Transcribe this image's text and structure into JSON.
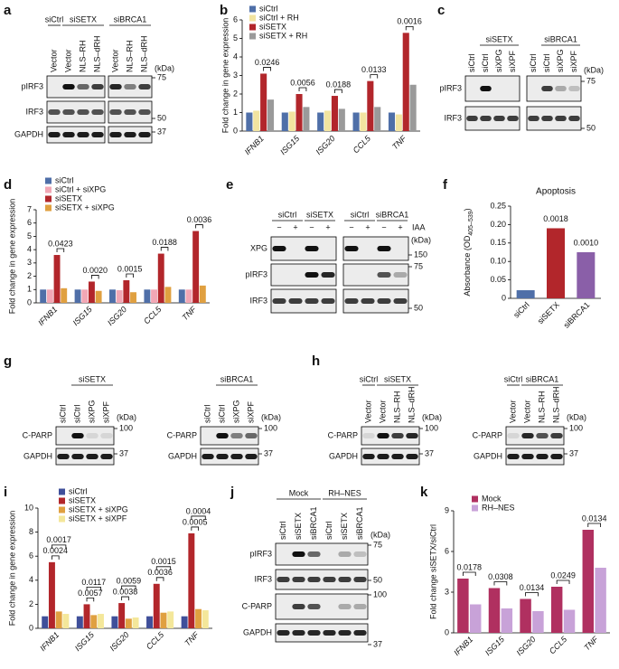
{
  "blots": [
    {
      "panel": "a",
      "boxes": [
        {
          "groups": [
            {
              "label": "siCtrl",
              "lanes": [
                "Vector"
              ]
            },
            {
              "label": "siSETX",
              "lanes": [
                "Vector",
                "NLS–RH",
                "NLS–dRH"
              ]
            }
          ]
        },
        {
          "groups": [
            {
              "label": "siBRCA1",
              "lanes": [
                "Vector",
                "NLS–RH",
                "NLS–dRH"
              ]
            }
          ]
        }
      ],
      "rows": [
        "pIRF3",
        "IRF3",
        "GAPDH"
      ],
      "kda": "(kDa)",
      "markers": [
        "75",
        "50",
        "37"
      ]
    },
    {
      "panel": "c",
      "boxes": [
        {
          "groups": [
            {
              "lanes": [
                "siCtrl"
              ]
            },
            {
              "label": "siSETX",
              "lanes": [
                "siCtrl",
                "siXPG",
                "siXPF"
              ]
            }
          ]
        },
        {
          "groups": [
            {
              "lanes": [
                "siCtrl"
              ]
            },
            {
              "label": "siBRCA1",
              "lanes": [
                "siCtrl",
                "siXPG",
                "siXPF"
              ]
            }
          ]
        }
      ],
      "rows": [
        "pIRF3",
        "IRF3"
      ],
      "kda": "(kDa)",
      "markers": [
        "75",
        "50"
      ]
    },
    {
      "panel": "e",
      "boxes": [
        {
          "groups": [
            {
              "label": "siCtrl",
              "lanes": [
                "−",
                "+"
              ]
            },
            {
              "label": "siSETX",
              "lanes": [
                "−",
                "+"
              ]
            }
          ]
        },
        {
          "groups": [
            {
              "label": "siCtrl",
              "lanes": [
                "−",
                "+"
              ]
            },
            {
              "label": "siBRCA1",
              "lanes": [
                "−",
                "+"
              ]
            }
          ]
        }
      ],
      "treatment": "IAA",
      "rows": [
        "XPG",
        "pIRF3",
        "IRF3"
      ],
      "kda": "(kDa)",
      "markers": [
        "150",
        "75",
        "50"
      ]
    },
    {
      "panel": "g",
      "boxes": [
        {
          "groups": [
            {
              "lanes": [
                "siCtrl"
              ]
            },
            {
              "label": "siSETX",
              "lanes": [
                "siCtrl",
                "siXPG",
                "siXPF"
              ]
            }
          ]
        }
      ],
      "rows": [
        "C-PARP",
        "GAPDH"
      ],
      "kda": "(kDa)",
      "markers": [
        "100",
        "37"
      ]
    },
    {
      "boxes": [
        {
          "groups": [
            {
              "lanes": [
                "siCtrl"
              ]
            },
            {
              "label": "siBRCA1",
              "lanes": [
                "siCtrl",
                "siXPG",
                "siXPF"
              ]
            }
          ]
        }
      ],
      "rows": [
        "C-PARP",
        "GAPDH"
      ],
      "kda": "(kDa)",
      "markers": [
        "100",
        "37"
      ]
    },
    {
      "panel": "h",
      "boxes": [
        {
          "groups": [
            {
              "label": "siCtrl",
              "lanes": [
                "Vector"
              ]
            },
            {
              "label": "siSETX",
              "lanes": [
                "Vector",
                "NLS–RH",
                "NLS–dRH"
              ]
            }
          ]
        }
      ],
      "rows": [
        "C-PARP",
        "GAPDH"
      ],
      "kda": "(kDa)",
      "markers": [
        "100",
        "37"
      ]
    },
    {
      "boxes": [
        {
          "groups": [
            {
              "label": "siCtrl",
              "lanes": [
                "Vector"
              ]
            },
            {
              "label": "siBRCA1",
              "lanes": [
                "Vector",
                "NLS–RH",
                "NLS–dRH"
              ]
            }
          ]
        }
      ],
      "rows": [
        "C-PARP",
        "GAPDH"
      ],
      "kda": "(kDa)",
      "markers": [
        "100",
        "37"
      ]
    },
    {
      "panel": "j",
      "boxes": [
        {
          "groups": [
            {
              "label": "Mock",
              "lanes": [
                "siCtrl",
                "siSETX",
                "siBRCA1"
              ]
            },
            {
              "label": "RH–NES",
              "lanes": [
                "siCtrl",
                "siSETX",
                "siBRCA1"
              ]
            }
          ]
        }
      ],
      "rows": [
        "pIRF3",
        "IRF3",
        "C-PARP",
        "GAPDH"
      ],
      "kda": "(kDa)",
      "markers": [
        "75",
        "50",
        "100",
        "37"
      ]
    }
  ],
  "chart_data": [
    {
      "panel": "b",
      "type": "bar",
      "ylabel": "Fold change in gene expression",
      "categories": [
        "IFNB1",
        "ISG15",
        "ISG20",
        "CCL5",
        "TNF"
      ],
      "series": [
        {
          "name": "siCtrl",
          "color": "#4f6fa8",
          "values": [
            1,
            1,
            1,
            1,
            1
          ]
        },
        {
          "name": "siCtrl + RH",
          "color": "#f2e4a0",
          "values": [
            1.1,
            1.05,
            1.1,
            1.0,
            0.9
          ]
        },
        {
          "name": "siSETX",
          "color": "#b2262b",
          "values": [
            3.1,
            2.0,
            1.9,
            2.7,
            5.3
          ]
        },
        {
          "name": "siSETX + RH",
          "color": "#9a9a9a",
          "values": [
            1.7,
            1.3,
            1.2,
            1.3,
            2.5
          ]
        }
      ],
      "ylim": [
        0,
        6
      ],
      "yticks": [
        0,
        1,
        2,
        3,
        4,
        5,
        6
      ],
      "pvalues": [
        "0.0246",
        "0.0056",
        "0.0188",
        "0.0133",
        "0.0016"
      ]
    },
    {
      "panel": "d",
      "type": "bar",
      "ylabel": "Fold change in gene expression",
      "categories": [
        "IFNB1",
        "ISG15",
        "ISG20",
        "CCL5",
        "TNF"
      ],
      "series": [
        {
          "name": "siCtrl",
          "color": "#4f6fa8",
          "values": [
            1,
            1,
            1,
            1,
            1
          ]
        },
        {
          "name": "siCtrl + siXPG",
          "color": "#f2a7b5",
          "values": [
            1,
            1,
            0.95,
            1,
            1
          ]
        },
        {
          "name": "siSETX",
          "color": "#b2262b",
          "values": [
            3.6,
            1.6,
            1.7,
            3.7,
            5.4
          ]
        },
        {
          "name": "siSETX + siXPG",
          "color": "#e0a040",
          "values": [
            1.1,
            0.9,
            0.8,
            1.2,
            1.3
          ]
        }
      ],
      "ylim": [
        0,
        7
      ],
      "yticks": [
        0,
        1,
        2,
        3,
        4,
        5,
        6,
        7
      ],
      "pvalues": [
        "0.0423",
        "0.0020",
        "0.0015",
        "0.0188",
        "0.0036"
      ]
    },
    {
      "panel": "f",
      "type": "bar",
      "title": "Apoptosis",
      "ylabel": "Absorbance (OD",
      "ylabel_sub": "405–539",
      "ylabel_end": ")",
      "categories": [
        "siCtrl",
        "siSETX",
        "siBRCA1"
      ],
      "values": [
        0.022,
        0.19,
        0.125
      ],
      "colors": [
        "#4f6fa8",
        "#b2262b",
        "#8a5fa8"
      ],
      "ylim": [
        0,
        0.25
      ],
      "yticks": [
        0,
        0.05,
        {
          "value": 0.1,
          "label": "0.10"
        },
        0.15,
        {
          "value": 0.2,
          "label": "0.20"
        },
        0.25
      ],
      "pvalues": [
        null,
        "0.0018",
        "0.0010"
      ]
    },
    {
      "panel": "i",
      "type": "bar",
      "ylabel": "Fold change in gene expression",
      "categories": [
        "IFNB1",
        "ISG15",
        "ISG20",
        "CCL5",
        "TNF"
      ],
      "series": [
        {
          "name": "siCtrl",
          "color": "#3f4f9a",
          "values": [
            1,
            1,
            1,
            1,
            1
          ]
        },
        {
          "name": "siSETX",
          "color": "#b2262b",
          "values": [
            5.5,
            2.0,
            2.1,
            3.7,
            7.9
          ]
        },
        {
          "name": "siSETX + siXPG",
          "color": "#e0a040",
          "values": [
            1.4,
            1.1,
            0.8,
            1.3,
            1.6
          ]
        },
        {
          "name": "siSETX + siXPF",
          "color": "#f4e79a",
          "values": [
            1.2,
            1.2,
            0.9,
            1.4,
            1.5
          ]
        }
      ],
      "ylim": [
        0,
        10
      ],
      "yticks": [
        0,
        2,
        4,
        6,
        8,
        10
      ],
      "pvalues": [
        [
          "0.0024",
          "0.0017"
        ],
        [
          "0.0057",
          "0.0117"
        ],
        [
          "0.0038",
          "0.0059"
        ],
        [
          "0.0036",
          "0.0015"
        ],
        [
          "0.0005",
          "0.0004"
        ]
      ]
    },
    {
      "panel": "k",
      "type": "bar",
      "ylabel": "Fold change siSETX/siCtrl",
      "categories": [
        "IFNB1",
        "ISG15",
        "ISG20",
        "CCL5",
        "TNF"
      ],
      "series": [
        {
          "name": "Mock",
          "color": "#b03060",
          "values": [
            4.0,
            3.3,
            2.5,
            3.4,
            7.6
          ]
        },
        {
          "name": "RH–NES",
          "color": "#c8a2d8",
          "values": [
            2.1,
            1.8,
            1.6,
            1.7,
            4.8
          ]
        }
      ],
      "ylim": [
        0,
        9
      ],
      "yticks": [
        0,
        3,
        6,
        9
      ],
      "pvalues": [
        "0.0178",
        "0.0308",
        "0.0134",
        "0.0249",
        "0.0134"
      ]
    }
  ]
}
